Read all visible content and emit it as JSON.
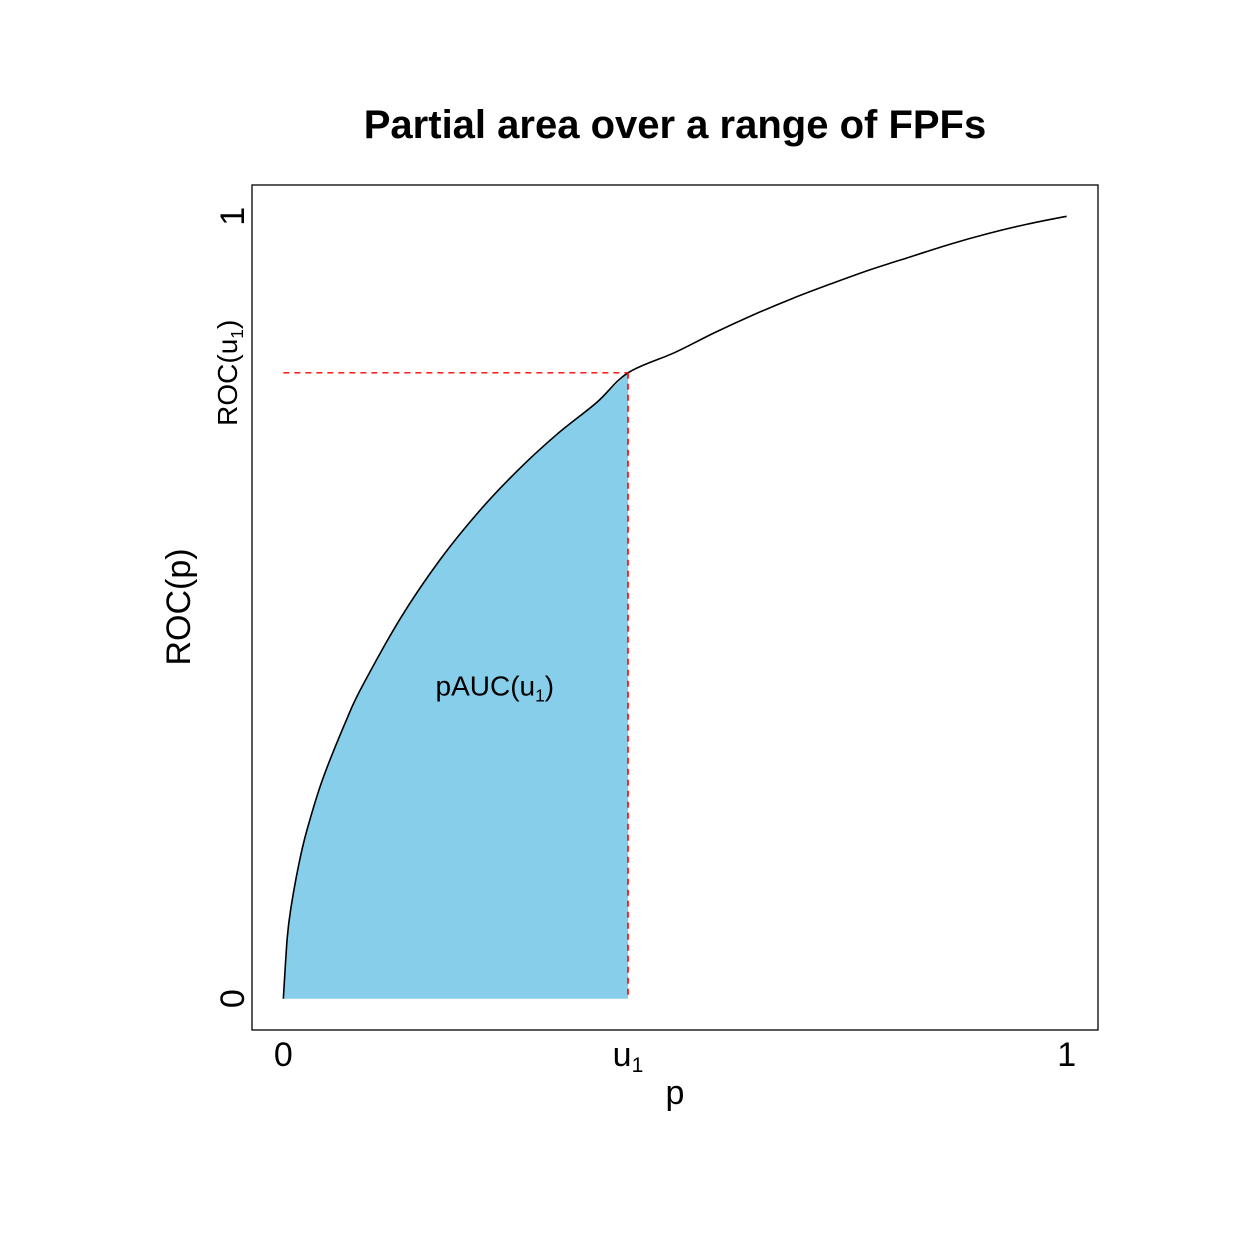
{
  "chart_data": {
    "type": "area",
    "title": "Partial area over a range of FPFs",
    "xlabel": "p",
    "ylabel": "ROC(p)",
    "xlim": [
      -0.04,
      1.04
    ],
    "ylim": [
      -0.04,
      1.04
    ],
    "u1": 0.44,
    "roc_at_u1": 0.8,
    "curve": {
      "x": [
        0,
        0.005,
        0.01,
        0.02,
        0.03,
        0.05,
        0.08,
        0.1,
        0.15,
        0.2,
        0.25,
        0.3,
        0.35,
        0.4,
        0.44,
        0.5,
        0.55,
        0.6,
        0.65,
        0.7,
        0.75,
        0.8,
        0.85,
        0.9,
        0.95,
        1.0
      ],
      "y": [
        0,
        0.078,
        0.118,
        0.173,
        0.215,
        0.28,
        0.355,
        0.398,
        0.487,
        0.561,
        0.623,
        0.676,
        0.722,
        0.762,
        0.8,
        0.826,
        0.851,
        0.874,
        0.895,
        0.914,
        0.932,
        0.948,
        0.964,
        0.978,
        0.99,
        1.0
      ]
    },
    "x_ticks": [
      {
        "value": 0,
        "base": "0",
        "sub": ""
      },
      {
        "value": 0.44,
        "base": "u",
        "sub": "1"
      },
      {
        "value": 1,
        "base": "1",
        "sub": ""
      }
    ],
    "y_ticks": [
      {
        "value": 0,
        "base": "0",
        "sub": "",
        "tail": ""
      },
      {
        "value": 0.8,
        "base": "ROC(u",
        "sub": "1",
        "tail": ")"
      },
      {
        "value": 1,
        "base": "1",
        "sub": "",
        "tail": ""
      }
    ],
    "annotation": {
      "base": "pAUC(u",
      "sub": "1",
      "tail": ")",
      "x": 0.27,
      "y": 0.4
    },
    "colors": {
      "fill": "#87CEEB",
      "curve": "#000000",
      "guide": "#FF0000"
    },
    "grid": false,
    "legend": "none"
  }
}
